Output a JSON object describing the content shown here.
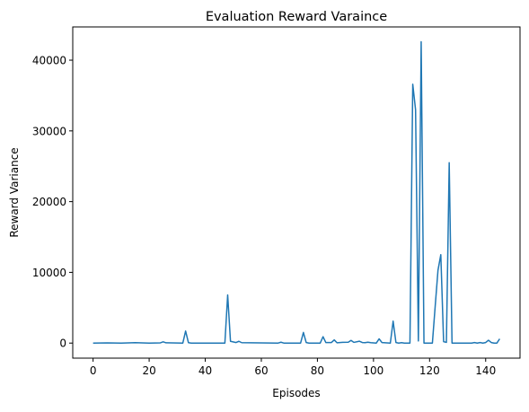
{
  "chart_data": {
    "type": "line",
    "title": "Evaluation Reward Varaince",
    "xlabel": "Episodes",
    "ylabel": "Reward Variance",
    "xlim": [
      -7.25,
      152.25
    ],
    "ylim": [
      -2130,
      44700
    ],
    "xticks": [
      0,
      20,
      40,
      60,
      80,
      100,
      120,
      140
    ],
    "yticks": [
      0,
      10000,
      20000,
      30000,
      40000
    ],
    "grid": false,
    "series": [
      {
        "color": "#1f77b4",
        "x": [
          0,
          5,
          10,
          15,
          20,
          24,
          25,
          26,
          32,
          33,
          34,
          35,
          47,
          48,
          49,
          51,
          52,
          53,
          66,
          67,
          68,
          74,
          75,
          76,
          77,
          81,
          82,
          83,
          85,
          86,
          87,
          89,
          91,
          92,
          93,
          95,
          96,
          97,
          98,
          99,
          101,
          102,
          103,
          106,
          107,
          108,
          109,
          110,
          111,
          113,
          114,
          115,
          116,
          117,
          118,
          120,
          121,
          122,
          123,
          124,
          125,
          126,
          127,
          128,
          129,
          135,
          136,
          137,
          138,
          139,
          140,
          141,
          142,
          143,
          144,
          145
        ],
        "values": [
          0,
          30,
          0,
          60,
          0,
          30,
          180,
          40,
          0,
          1700,
          60,
          0,
          0,
          6800,
          250,
          80,
          250,
          60,
          0,
          120,
          0,
          0,
          1500,
          80,
          0,
          0,
          900,
          80,
          80,
          450,
          40,
          100,
          120,
          380,
          100,
          260,
          80,
          60,
          120,
          60,
          0,
          600,
          80,
          0,
          3100,
          80,
          0,
          60,
          0,
          0,
          36600,
          33000,
          300,
          42600,
          0,
          0,
          0,
          5200,
          10300,
          12500,
          200,
          100,
          25500,
          0,
          0,
          0,
          80,
          0,
          80,
          0,
          80,
          400,
          80,
          0,
          0,
          600
        ]
      }
    ]
  }
}
